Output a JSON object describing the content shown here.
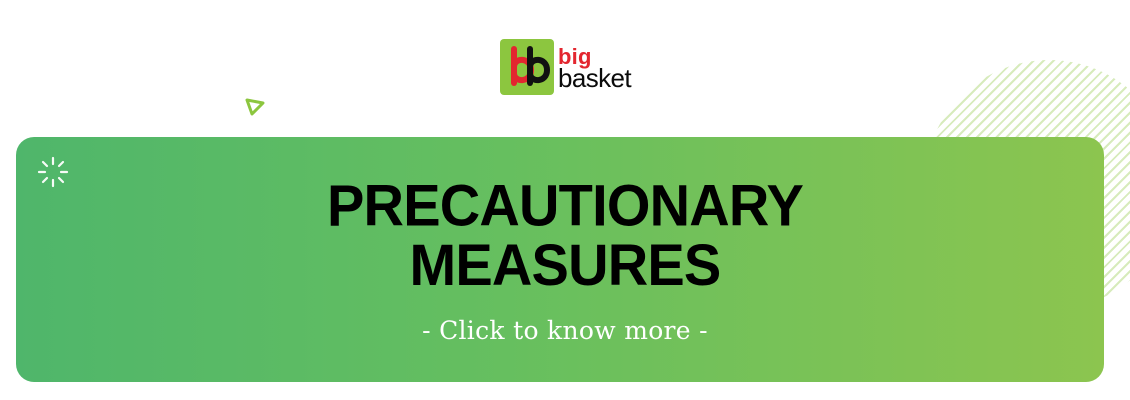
{
  "brand": {
    "logo": {
      "word_1": "big",
      "word_2": "basket",
      "mark_letters": "bb"
    }
  },
  "decorations": {
    "triangle_icon": "triangle-outline-icon",
    "sparkle_icon": "sparkle-icon",
    "striped_circle": "striped-circle-decoration"
  },
  "banner": {
    "title_line_1": "PRECAUTIONARY",
    "title_line_2": "MEASURES",
    "cta_text": "- Click to know more -"
  },
  "colors": {
    "green_left": "#4fb66b",
    "green_right": "#8cc54f",
    "logo_green": "#8cc63f",
    "logo_red": "#e3262f"
  }
}
